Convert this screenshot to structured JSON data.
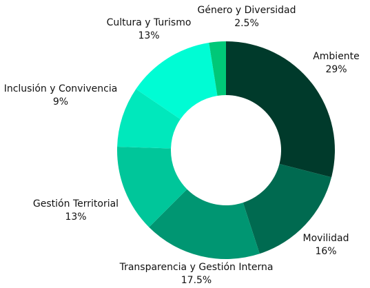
{
  "chart_data": {
    "type": "pie",
    "categories": [
      "Ambiente",
      "Movilidad",
      "Transparencia y Gestión Interna",
      "Gestión Territorial",
      "Inclusión y Convivencia",
      "Cultura y Turismo",
      "Género y Diversidad"
    ],
    "values": [
      29,
      16,
      17.5,
      13,
      9,
      13,
      2.5
    ],
    "value_labels": [
      "29%",
      "16%",
      "17.5%",
      "13%",
      "9%",
      "13%",
      "2.5%"
    ],
    "colors": [
      "#003a2b",
      "#006a50",
      "#009672",
      "#00c69a",
      "#00e8bc",
      "#00fcd4",
      "#00c878"
    ]
  }
}
